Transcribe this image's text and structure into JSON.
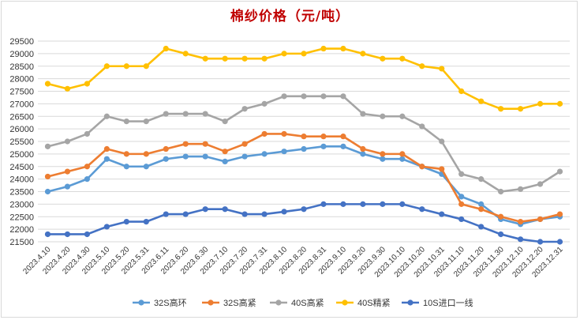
{
  "chart_data": {
    "type": "line",
    "title": "棉纱价格（元/吨）",
    "xlabel": "",
    "ylabel": "",
    "ylim": [
      21500,
      29500
    ],
    "ytick_step": 500,
    "grid": true,
    "legend_position": "bottom",
    "categories": [
      "2023.4.10",
      "2023.4.20",
      "2023.4.30",
      "2023.5.10",
      "2023.5.20",
      "2023.5.31",
      "2023.6.11",
      "2023.6.20",
      "2023.6.30",
      "2023.7.10",
      "2023.7.20",
      "2023.7.31",
      "2023.8.10",
      "2023.8.20",
      "2023.8.31",
      "2023.9.10",
      "2023.9.20",
      "2023.9.30",
      "2023.10.10",
      "2023.10.20",
      "2023.10.31",
      "2023.11.10",
      "2023.11.20",
      "2023.11.30",
      "2023.12.10",
      "2023.12.20",
      "2023.12.31"
    ],
    "series": [
      {
        "name": "32S高环",
        "color": "#5b9bd5",
        "values": [
          23500,
          23700,
          24000,
          24800,
          24500,
          24500,
          24800,
          24900,
          24900,
          24700,
          24900,
          25000,
          25100,
          25200,
          25300,
          25300,
          25000,
          24800,
          24800,
          24500,
          24200,
          23300,
          23000,
          22400,
          22200,
          22400,
          22500
        ]
      },
      {
        "name": "32S高紧",
        "color": "#ed7d31",
        "values": [
          24100,
          24300,
          24500,
          25200,
          25000,
          25000,
          25200,
          25400,
          25400,
          25100,
          25400,
          25800,
          25800,
          25700,
          25700,
          25700,
          25200,
          25000,
          25000,
          24500,
          24400,
          23000,
          22800,
          22500,
          22300,
          22400,
          22600
        ]
      },
      {
        "name": "40S高紧",
        "color": "#a5a5a5",
        "values": [
          25300,
          25500,
          25800,
          26500,
          26300,
          26300,
          26600,
          26600,
          26600,
          26300,
          26800,
          27000,
          27300,
          27300,
          27300,
          27300,
          26600,
          26500,
          26500,
          26100,
          25500,
          24200,
          24000,
          23500,
          23600,
          23800,
          24300
        ]
      },
      {
        "name": "40S精紧",
        "color": "#ffc000",
        "values": [
          27800,
          27600,
          27800,
          28500,
          28500,
          28500,
          29200,
          29000,
          28800,
          28800,
          28800,
          28800,
          29000,
          29000,
          29200,
          29200,
          29000,
          28800,
          28800,
          28500,
          28400,
          27500,
          27100,
          26800,
          26800,
          27000,
          27000
        ]
      },
      {
        "name": "10S进口一线",
        "color": "#4472c4",
        "values": [
          21800,
          21800,
          21800,
          22100,
          22300,
          22300,
          22600,
          22600,
          22800,
          22800,
          22600,
          22600,
          22700,
          22800,
          23000,
          23000,
          23000,
          23000,
          23000,
          22800,
          22600,
          22400,
          22100,
          21800,
          21600,
          21500,
          21500
        ]
      }
    ]
  }
}
